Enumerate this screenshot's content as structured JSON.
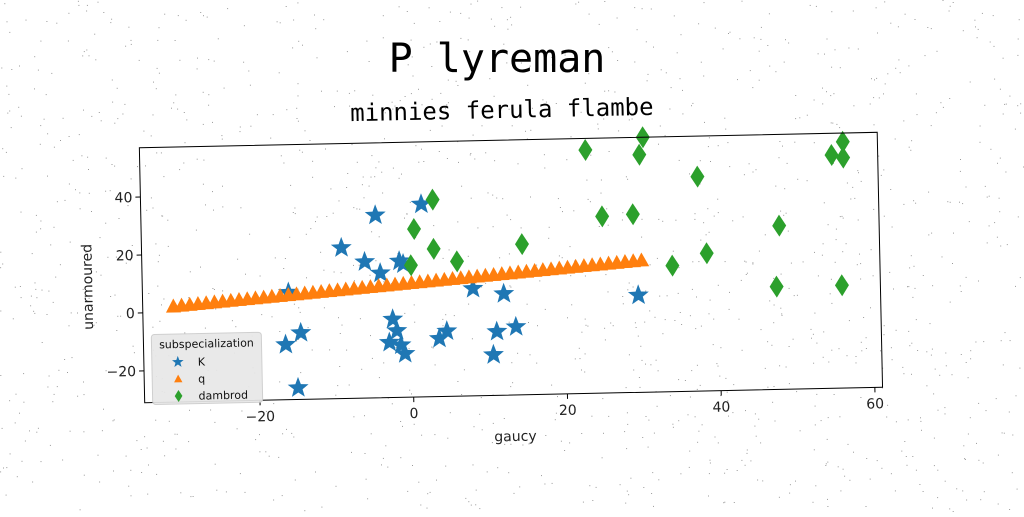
{
  "chart_data": {
    "type": "scatter",
    "title": "P lyreman",
    "subtitle": "minnies ferula flambe",
    "xlabel": "gaucy",
    "ylabel": "unarmoured",
    "xlim": [
      -35,
      61
    ],
    "ylim": [
      -31,
      57
    ],
    "xticks": [
      -20,
      0,
      20,
      40,
      60
    ],
    "xtick_labels": [
      "−20",
      "0",
      "20",
      "40",
      "60"
    ],
    "yticks": [
      -20,
      0,
      20,
      40
    ],
    "ytick_labels": [
      "−20",
      "0",
      "20",
      "40"
    ],
    "grid": false,
    "legend": {
      "title": "subspecialization",
      "placement": "bottom-left"
    },
    "series": [
      {
        "name": "K",
        "marker": "star",
        "color": "#1f77b4",
        "points": [
          [
            -4.5,
            32
          ],
          [
            1.5,
            35.5
          ],
          [
            -9,
            21
          ],
          [
            -6,
            16
          ],
          [
            -4,
            12
          ],
          [
            -1.5,
            16
          ],
          [
            -1,
            15
          ],
          [
            -16,
            6
          ],
          [
            -14.5,
            -8
          ],
          [
            -16.5,
            -12
          ],
          [
            -15,
            -27
          ],
          [
            -2.5,
            -4
          ],
          [
            -2,
            -8
          ],
          [
            -3,
            -12
          ],
          [
            -1.5,
            -13
          ],
          [
            -1,
            -16
          ],
          [
            3.5,
            -11
          ],
          [
            4.5,
            -8.5
          ],
          [
            8,
            6
          ],
          [
            12,
            4
          ],
          [
            11,
            -9
          ],
          [
            13.5,
            -7.5
          ],
          [
            10.5,
            -17
          ],
          [
            29.5,
            2.5
          ]
        ]
      },
      {
        "name": "q",
        "marker": "triangle",
        "color": "#ff7f0e",
        "line": {
          "x_start": -31,
          "x_end": 30,
          "y_start": 2,
          "y_end": 14.5,
          "count": 58
        }
      },
      {
        "name": "dambrod",
        "marker": "diamond",
        "color": "#2ca02c",
        "points": [
          [
            3,
            37
          ],
          [
            0.5,
            27
          ],
          [
            3,
            20
          ],
          [
            0,
            14.5
          ],
          [
            6,
            15.5
          ],
          [
            14.5,
            21
          ],
          [
            23,
            53
          ],
          [
            30.5,
            57
          ],
          [
            30,
            51
          ],
          [
            25,
            30
          ],
          [
            29,
            30.5
          ],
          [
            37.5,
            43
          ],
          [
            34,
            12.5
          ],
          [
            38.5,
            16.5
          ],
          [
            48,
            25.5
          ],
          [
            47.5,
            4.5
          ],
          [
            55,
            49.5
          ],
          [
            56.5,
            54
          ],
          [
            56.5,
            48.5
          ],
          [
            56,
            4.5
          ]
        ]
      }
    ]
  }
}
